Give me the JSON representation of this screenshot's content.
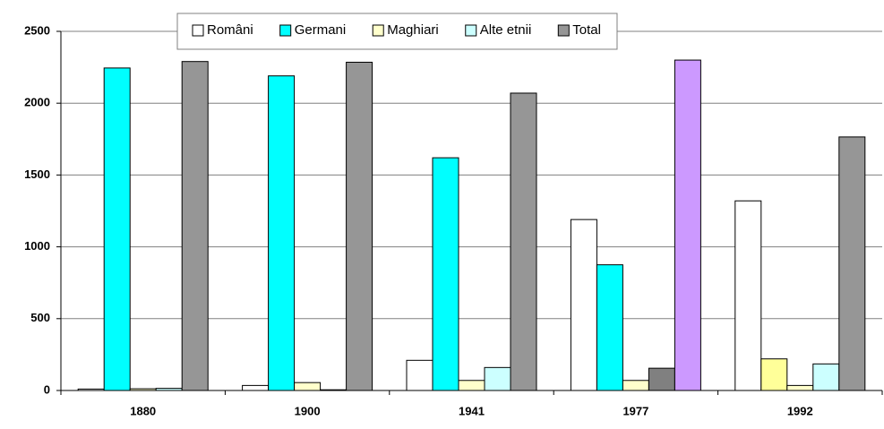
{
  "chart_data": {
    "type": "bar",
    "categories": [
      "1880",
      "1900",
      "1941",
      "1977",
      "1992"
    ],
    "series": [
      {
        "name": "Români",
        "color": "#ffffff",
        "colors": [
          "#ffffff",
          "#ffffff",
          "#ffffff",
          "#ffffff",
          "#ffffff"
        ],
        "values": [
          10,
          35,
          210,
          1190,
          1320
        ]
      },
      {
        "name": "Germani",
        "color": "#00ffff",
        "colors": [
          "#00ffff",
          "#00ffff",
          "#00ffff",
          "#00ffff",
          "#ffff99"
        ],
        "values": [
          2245,
          2190,
          1620,
          875,
          220
        ]
      },
      {
        "name": "Maghiari",
        "color": "#ffffcc",
        "colors": [
          "#ffffcc",
          "#ffffcc",
          "#ffffcc",
          "#ffffcc",
          "#ffffcc"
        ],
        "values": [
          12,
          55,
          70,
          70,
          35
        ]
      },
      {
        "name": "Alte etnii",
        "color": "#ccffff",
        "colors": [
          "#ccffff",
          "#ccffff",
          "#ccffff",
          "#808080",
          "#ccffff"
        ],
        "values": [
          15,
          5,
          160,
          155,
          185
        ]
      },
      {
        "name": "Total",
        "color": "#969696",
        "colors": [
          "#969696",
          "#969696",
          "#969696",
          "#cc99ff",
          "#969696"
        ],
        "values": [
          2290,
          2285,
          2070,
          2300,
          1765
        ]
      }
    ],
    "ylim": [
      0,
      2500
    ],
    "yticks": [
      0,
      500,
      1000,
      1500,
      2000,
      2500
    ],
    "grid": true,
    "legend": "top"
  }
}
